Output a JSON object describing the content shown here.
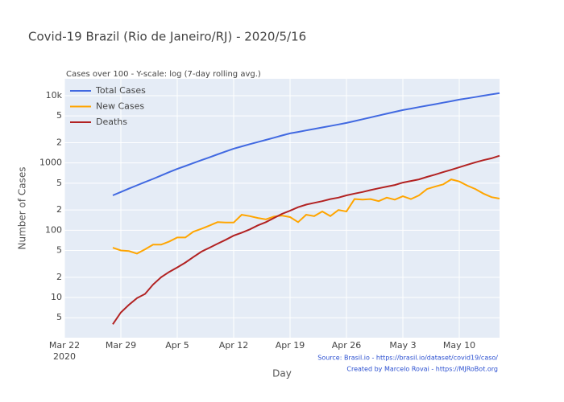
{
  "chart_data": {
    "type": "line",
    "title": "Covid-19 Brazil (Rio de Janeiro/RJ) - 2020/5/16",
    "subtitle": "Cases over 100 - Y-scale: log (7-day rolling avg.)",
    "x_label": "Day",
    "y_label": "Number of Cases",
    "annotations": [
      "Source: Brasil.io - https://brasil.io/dataset/covid19/caso/",
      "Created by Marcelo Rovai - https://MJRoBot.org"
    ],
    "log_y": true,
    "grid": true,
    "legend": "top-left",
    "x": [
      "2020-03-28",
      "2020-03-29",
      "2020-03-30",
      "2020-03-31",
      "2020-04-01",
      "2020-04-02",
      "2020-04-03",
      "2020-04-04",
      "2020-04-05",
      "2020-04-06",
      "2020-04-07",
      "2020-04-08",
      "2020-04-09",
      "2020-04-10",
      "2020-04-11",
      "2020-04-12",
      "2020-04-13",
      "2020-04-14",
      "2020-04-15",
      "2020-04-16",
      "2020-04-17",
      "2020-04-18",
      "2020-04-19",
      "2020-04-20",
      "2020-04-21",
      "2020-04-22",
      "2020-04-23",
      "2020-04-24",
      "2020-04-25",
      "2020-04-26",
      "2020-04-27",
      "2020-04-28",
      "2020-04-29",
      "2020-04-30",
      "2020-05-01",
      "2020-05-02",
      "2020-05-03",
      "2020-05-04",
      "2020-05-05",
      "2020-05-06",
      "2020-05-07",
      "2020-05-08",
      "2020-05-09",
      "2020-05-10",
      "2020-05-11",
      "2020-05-12",
      "2020-05-13",
      "2020-05-14",
      "2020-05-15"
    ],
    "series": [
      {
        "name": "Total Cases",
        "color": "#4169e1",
        "values": [
          330,
          370,
          415,
          465,
          520,
          580,
          650,
          730,
          815,
          900,
          995,
          1100,
          1210,
          1340,
          1480,
          1630,
          1760,
          1900,
          2040,
          2200,
          2370,
          2560,
          2750,
          2890,
          3040,
          3200,
          3370,
          3540,
          3730,
          3930,
          4190,
          4460,
          4750,
          5060,
          5390,
          5740,
          6100,
          6420,
          6750,
          7100,
          7470,
          7860,
          8270,
          8720,
          9120,
          9540,
          9980,
          10440,
          10900
        ]
      },
      {
        "name": "New Cases",
        "color": "#ffa500",
        "values": [
          55,
          50,
          49,
          45,
          52,
          61,
          61,
          68,
          78,
          78,
          95,
          105,
          117,
          132,
          130,
          130,
          170,
          162,
          152,
          145,
          160,
          165,
          157,
          132,
          170,
          162,
          190,
          162,
          200,
          190,
          290,
          285,
          290,
          270,
          305,
          285,
          320,
          290,
          330,
          410,
          445,
          480,
          570,
          530,
          460,
          410,
          350,
          310,
          295
        ]
      },
      {
        "name": "Deaths",
        "color": "#b22222",
        "values": [
          4,
          6,
          7.8,
          9.8,
          11.3,
          15.6,
          20,
          24,
          28,
          33,
          40,
          48,
          55,
          63,
          72,
          83,
          92,
          103,
          118,
          132,
          152,
          175,
          195,
          220,
          240,
          255,
          270,
          290,
          305,
          330,
          350,
          370,
          395,
          420,
          445,
          470,
          510,
          540,
          570,
          620,
          670,
          730,
          790,
          860,
          940,
          1020,
          1100,
          1170,
          1280
        ]
      }
    ],
    "xlim": [
      "2020-03-22",
      "2020-05-15"
    ],
    "xticks": [
      {
        "value": "2020-03-22",
        "label": "Mar 22\n2020"
      },
      {
        "value": "2020-03-29",
        "label": "Mar 29"
      },
      {
        "value": "2020-04-05",
        "label": "Apr 5"
      },
      {
        "value": "2020-04-12",
        "label": "Apr 12"
      },
      {
        "value": "2020-04-19",
        "label": "Apr 19"
      },
      {
        "value": "2020-04-26",
        "label": "Apr 26"
      },
      {
        "value": "2020-05-03",
        "label": "May 3"
      },
      {
        "value": "2020-05-10",
        "label": "May 10"
      }
    ],
    "ylim": [
      2.53,
      17800
    ],
    "yticks": [
      5,
      10,
      {
        "value": 20,
        "label": "2"
      },
      {
        "value": 50,
        "label": "5"
      },
      100,
      {
        "value": 200,
        "label": "2"
      },
      {
        "value": 500,
        "label": "5"
      },
      1000,
      {
        "value": 2000,
        "label": "2"
      },
      {
        "value": 5000,
        "label": "5"
      },
      {
        "value": 10000,
        "label": "10k"
      }
    ]
  }
}
